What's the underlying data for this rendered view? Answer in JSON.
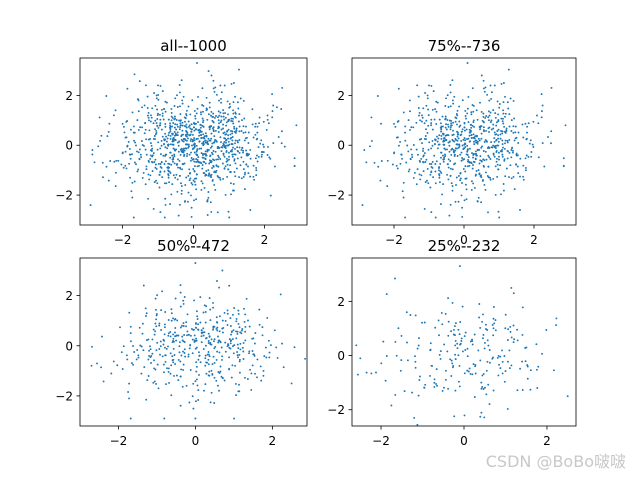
{
  "chart_data": [
    {
      "type": "scatter",
      "title": "all--1000",
      "point_count": 1000,
      "xlim": [
        -3.2,
        3.2
      ],
      "ylim": [
        -3.2,
        3.5
      ],
      "xticks": [
        -2,
        0,
        2
      ],
      "yticks": [
        -2,
        0,
        2
      ],
      "color": "#1f77b4",
      "grid": false,
      "distribution": "standard normal (x and y), mean 0, sd 1",
      "sample_points": [
        [
          -2.9,
          -2.4
        ],
        [
          2.9,
          0.8
        ],
        [
          0.1,
          3.3
        ],
        [
          2.5,
          2.3
        ],
        [
          1.6,
          -2.6
        ],
        [
          -1.0,
          2.4
        ],
        [
          0.4,
          -2.8
        ],
        [
          -2.2,
          1.4
        ]
      ]
    },
    {
      "type": "scatter",
      "title": "75%--736",
      "point_count": 736,
      "xlim": [
        -3.2,
        3.2
      ],
      "ylim": [
        -3.2,
        3.5
      ],
      "xticks": [
        -2,
        0,
        2
      ],
      "yticks": [
        -2,
        0,
        2
      ],
      "color": "#1f77b4",
      "grid": false,
      "distribution": "random 73.6% subset of the full sample",
      "sample_points": [
        [
          -2.9,
          -2.4
        ],
        [
          2.9,
          0.8
        ],
        [
          0.1,
          3.3
        ],
        [
          2.5,
          2.3
        ],
        [
          1.6,
          -2.6
        ],
        [
          -1.0,
          2.4
        ]
      ]
    },
    {
      "type": "scatter",
      "title": "50%--472",
      "point_count": 472,
      "xlim": [
        -3.0,
        2.9
      ],
      "ylim": [
        -3.2,
        3.5
      ],
      "xticks": [
        -2,
        0,
        2
      ],
      "yticks": [
        -2,
        0,
        2
      ],
      "color": "#1f77b4",
      "grid": false,
      "distribution": "random 47.2% subset of the full sample",
      "sample_points": [
        [
          -2.7,
          -0.8
        ],
        [
          2.5,
          -1.5
        ],
        [
          0.0,
          3.3
        ],
        [
          0.7,
          3.0
        ],
        [
          0.0,
          -2.9
        ]
      ]
    },
    {
      "type": "scatter",
      "title": "25%--232",
      "point_count": 232,
      "xlim": [
        -2.7,
        2.7
      ],
      "ylim": [
        -2.6,
        3.6
      ],
      "xticks": [
        -2,
        0,
        2
      ],
      "yticks": [
        -2,
        0,
        2
      ],
      "color": "#1f77b4",
      "grid": false,
      "distribution": "random 23.2% subset of the full sample",
      "sample_points": [
        [
          -2.5,
          -0.1
        ],
        [
          2.5,
          -1.5
        ],
        [
          -0.1,
          3.3
        ],
        [
          1.2,
          2.3
        ],
        [
          -1.2,
          -2.3
        ]
      ]
    }
  ],
  "watermark": "CSDN @BoBo啵啵"
}
